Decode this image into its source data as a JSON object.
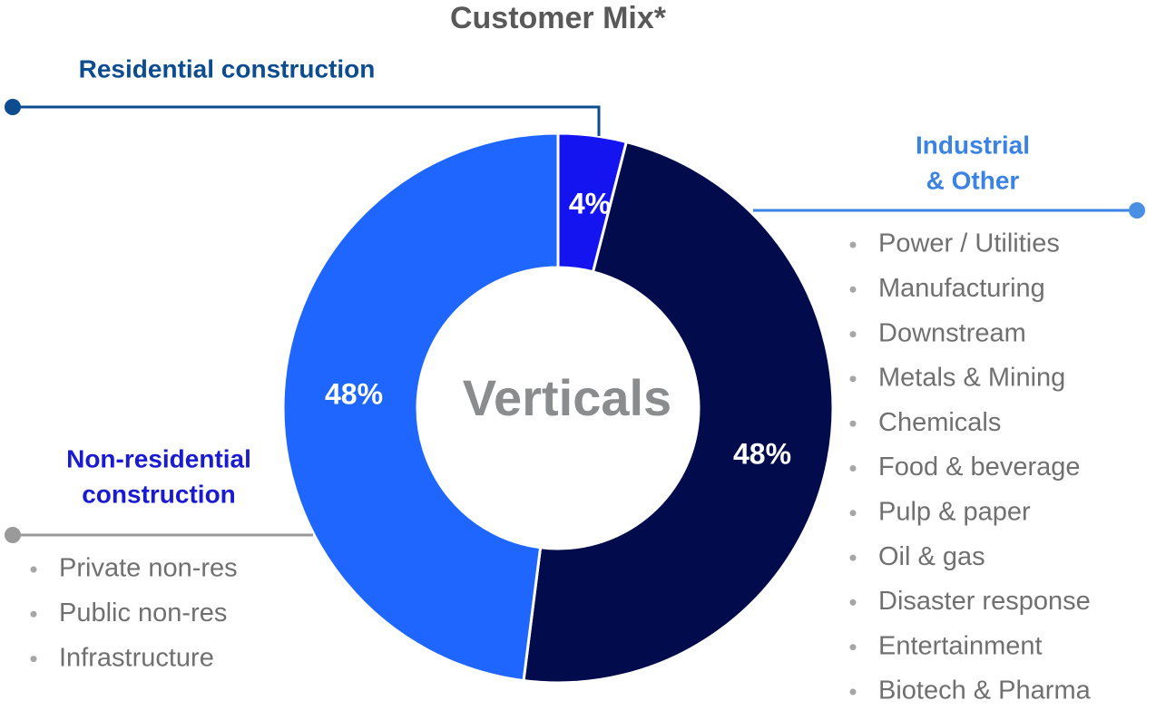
{
  "chart_data": {
    "type": "donut",
    "title": "Customer Mix*",
    "center_label": "Verticals",
    "categories": [
      [
        "Residential construction"
      ],
      [
        "Industrial",
        "& Other"
      ],
      [
        "Non-residential",
        "construction"
      ]
    ],
    "values": [
      4,
      48,
      48
    ],
    "value_labels": [
      "4%",
      "48%",
      "48%"
    ],
    "colors": [
      "#1414f0",
      "#020c4c",
      "#1f66ff"
    ],
    "label_colors": [
      "#0d4c8f",
      "#3a82e4",
      "#1a1ad0"
    ],
    "details": [
      [],
      [
        "Power / Utilities",
        "Manufacturing",
        "Downstream",
        "Metals & Mining",
        "Chemicals",
        "Food & beverage",
        "Pulp & paper",
        "Oil & gas",
        "Disaster response",
        "Entertainment",
        "Biotech & Pharma"
      ],
      [
        "Private non-res",
        "Public non-res",
        "Infrastructure"
      ]
    ]
  }
}
